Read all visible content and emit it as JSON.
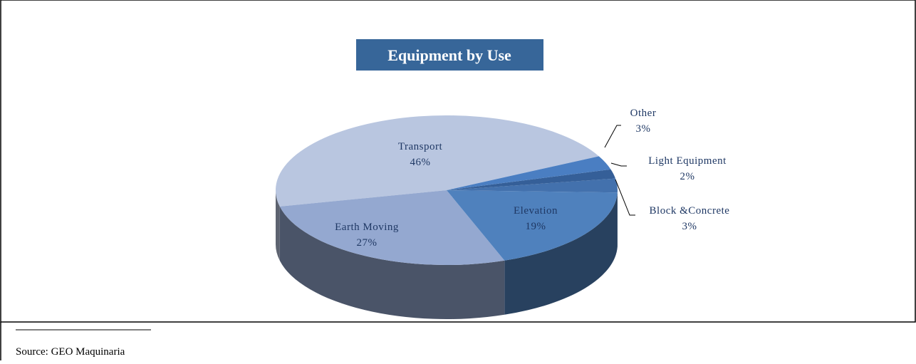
{
  "chart_data": {
    "type": "pie3d",
    "title": "Equipment by Use",
    "categories": [
      "Transport",
      "Earth Moving",
      "Elevation",
      "Block &Concrete",
      "Light Equipment",
      "Other"
    ],
    "values": [
      46,
      27,
      19,
      3,
      2,
      3
    ],
    "value_labels": [
      "46%",
      "27%",
      "19%",
      "3%",
      "2%",
      "3%"
    ],
    "colors": [
      "#b9c6e0",
      "#94a8d0",
      "#4f81bd",
      "#4371ad",
      "#355f98",
      "#4a7ec2"
    ],
    "source": "Source: GEO Maquinaria"
  }
}
